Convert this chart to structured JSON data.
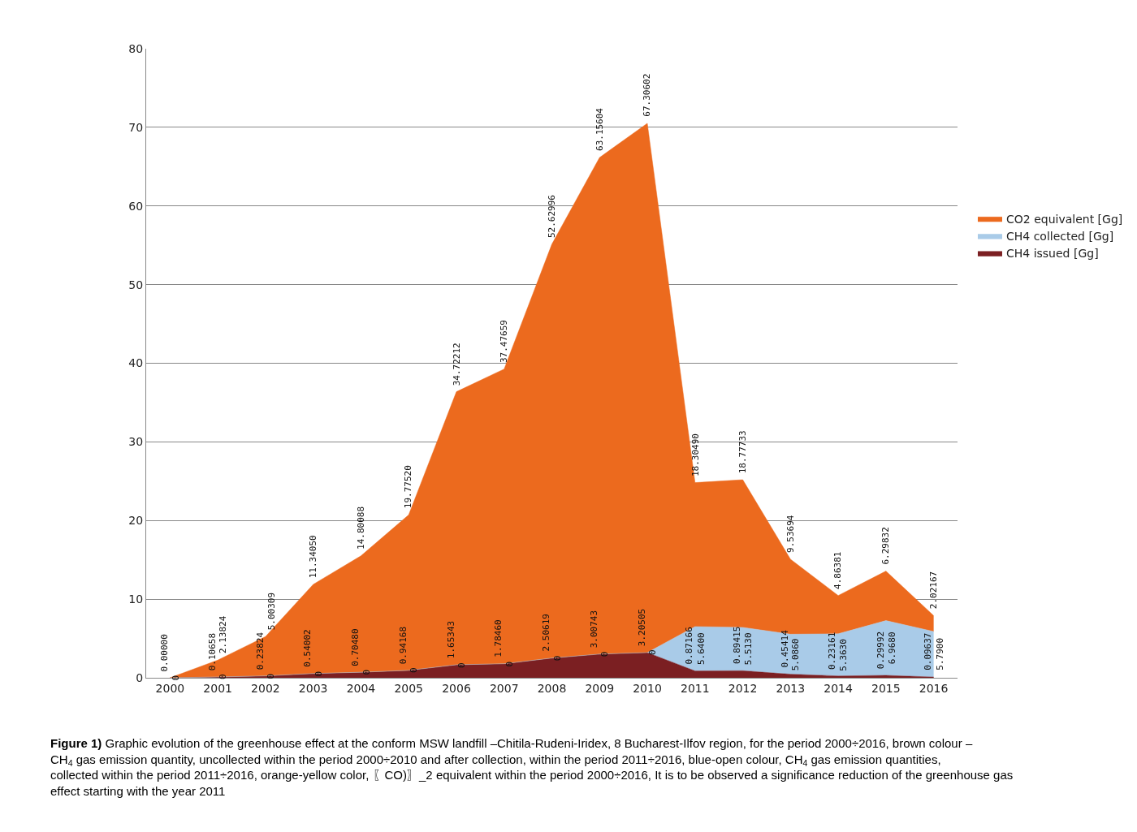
{
  "chart_data": {
    "type": "area",
    "stacked": true,
    "categories": [
      "2000",
      "2001",
      "2002",
      "2003",
      "2004",
      "2005",
      "2006",
      "2007",
      "2008",
      "2009",
      "2010",
      "2011",
      "2012",
      "2013",
      "2014",
      "2015",
      "2016"
    ],
    "series": [
      {
        "name": "CH4 issued [Gg]",
        "color": "#7b1f22",
        "values": [
          0,
          0.10658,
          0.23824,
          0.54002,
          0.7048,
          0.94168,
          1.65343,
          1.7846,
          2.50619,
          3.00743,
          3.20505,
          0.87166,
          0.89415,
          0.45414,
          0.23161,
          0.29992,
          0.09637
        ],
        "value_labels": [
          "0.00000",
          "0.10658",
          "0.23824",
          "0.54002",
          "0.70480",
          "0.94168",
          "1.65343",
          "1.78460",
          "2.50619",
          "3.00743",
          "3.20505",
          "0.87166",
          "0.89415",
          "0.45414",
          "0.23161",
          "0.29992",
          "0.09637"
        ]
      },
      {
        "name": "CH4 collected [Gg]",
        "color": "#a9cbe8",
        "values": [
          0,
          0,
          0,
          0,
          0,
          0,
          0,
          0,
          0,
          0,
          0,
          5.64,
          5.513,
          5.086,
          5.363,
          6.968,
          5.79
        ],
        "value_labels": [
          "0",
          "0",
          "0",
          "0",
          "0",
          "0",
          "0",
          "0",
          "0",
          "0",
          "0",
          "5.6400",
          "5.5130",
          "5.0860",
          "5.3630",
          "6.9680",
          "5.7900"
        ]
      },
      {
        "name": "CO2 equivalent [Gg]",
        "color": "#ec6a1e",
        "values": [
          0,
          2.13824,
          5.00309,
          11.3405,
          14.80088,
          19.7752,
          34.72212,
          37.47659,
          52.62996,
          63.15604,
          67.30602,
          18.3049,
          18.77733,
          9.53694,
          4.86381,
          6.29832,
          2.02167
        ],
        "value_labels": [
          null,
          "2.13824",
          "5.00309",
          "11.34050",
          "14.80088",
          "19.77520",
          "34.72212",
          "37.47659",
          "52.62996",
          "63.15604",
          "67.30602",
          "18.30490",
          "18.77733",
          "9.53694",
          "4.86381",
          "6.29832",
          "2.02167"
        ]
      }
    ],
    "ylim": [
      0,
      80
    ],
    "yticks": [
      0,
      10,
      20,
      30,
      40,
      50,
      60,
      70,
      80
    ],
    "grid": "y",
    "legend": "right",
    "annotations": [
      "**Figure 1)** Graphic evolution of the greenhouse effect at the conform MSW landfill –Chitila-Rudeni-Iridex, 8 Bucharest-Ilfov region, for the period 2000÷2016, brown colour – CH$_{4}$ gas emission quantity, uncollected within the period 2000÷2010 and after collection, within the period 2011÷2016, blue-open colour, CH$_{4}$ gas emission quantities, collected within the period 2011÷2016, orange-yellow color, 〖CO)〗_2 equivalent within the period 2000÷2016, It is to be observed a significance reduction of the greenhouse gas effect starting with the year 2011"
    ]
  }
}
